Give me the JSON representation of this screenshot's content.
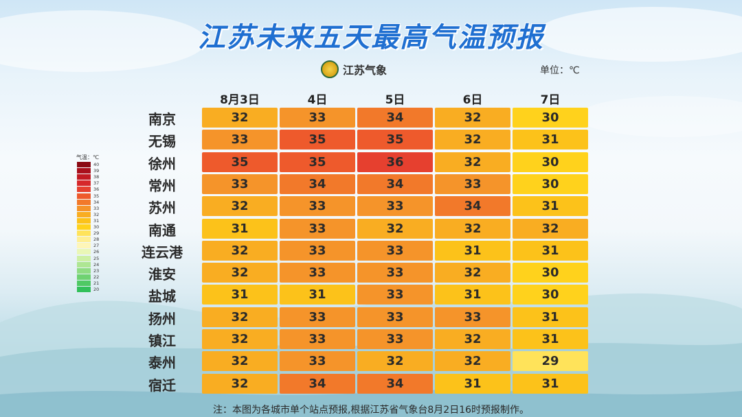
{
  "header": {
    "title": "江苏未来五天最高气温预报",
    "logo_text": "江苏气象",
    "unit": "单位：℃"
  },
  "legend": {
    "title": "气温：℃",
    "levels": [
      40,
      39,
      38,
      37,
      36,
      35,
      34,
      33,
      32,
      31,
      30,
      29,
      28,
      27,
      26,
      25,
      24,
      23,
      22,
      21,
      20
    ],
    "colors": {
      "40": "#8b0a14",
      "39": "#a9101c",
      "38": "#c11a22",
      "37": "#d6272a",
      "36": "#e6402f",
      "35": "#ee5a2c",
      "34": "#f2792a",
      "33": "#f5942a",
      "32": "#f9ad22",
      "31": "#fcc21a",
      "30": "#ffd21c",
      "29": "#ffe35a",
      "28": "#ffef93",
      "27": "#fef6b8",
      "26": "#eaf7b6",
      "25": "#cdf0a4",
      "24": "#aee693",
      "23": "#8fdc82",
      "22": "#6fd271",
      "21": "#4fc964",
      "20": "#32c05a"
    }
  },
  "chart_data": {
    "type": "table",
    "title": "江苏未来五天最高气温预报",
    "unit": "℃",
    "columns": [
      "8月3日",
      "4日",
      "5日",
      "6日",
      "7日"
    ],
    "rows": [
      {
        "city": "南京",
        "values": [
          32,
          33,
          34,
          32,
          30
        ]
      },
      {
        "city": "无锡",
        "values": [
          33,
          35,
          35,
          32,
          31
        ]
      },
      {
        "city": "徐州",
        "values": [
          35,
          35,
          36,
          32,
          30
        ]
      },
      {
        "city": "常州",
        "values": [
          33,
          34,
          34,
          33,
          30
        ]
      },
      {
        "city": "苏州",
        "values": [
          32,
          33,
          33,
          34,
          31
        ]
      },
      {
        "city": "南通",
        "values": [
          31,
          33,
          32,
          32,
          32
        ]
      },
      {
        "city": "连云港",
        "values": [
          32,
          33,
          33,
          31,
          31
        ]
      },
      {
        "city": "淮安",
        "values": [
          32,
          33,
          33,
          32,
          30
        ]
      },
      {
        "city": "盐城",
        "values": [
          31,
          31,
          33,
          31,
          30
        ]
      },
      {
        "city": "扬州",
        "values": [
          32,
          33,
          33,
          33,
          31
        ]
      },
      {
        "city": "镇江",
        "values": [
          32,
          33,
          33,
          32,
          31
        ]
      },
      {
        "city": "泰州",
        "values": [
          32,
          33,
          32,
          32,
          29
        ]
      },
      {
        "city": "宿迁",
        "values": [
          32,
          34,
          34,
          31,
          31
        ]
      }
    ]
  },
  "footer": {
    "note": "注：本图为各城市单个站点预报,根据江苏省气象台8月2日16时预报制作。"
  }
}
